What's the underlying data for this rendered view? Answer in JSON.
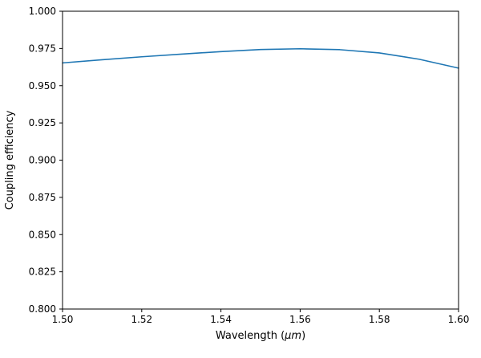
{
  "chart_data": {
    "type": "line",
    "title": "",
    "xlabel": "Wavelength (μm)",
    "ylabel": "Coupling efficiency",
    "xlim": [
      1.5,
      1.6
    ],
    "ylim": [
      0.8,
      1.0
    ],
    "grid": false,
    "legend": null,
    "xticks": [
      1.5,
      1.52,
      1.54,
      1.56,
      1.58,
      1.6
    ],
    "xtick_labels": [
      "1.50",
      "1.52",
      "1.54",
      "1.56",
      "1.58",
      "1.60"
    ],
    "yticks": [
      0.8,
      0.825,
      0.85,
      0.875,
      0.9,
      0.925,
      0.95,
      0.975,
      1.0
    ],
    "ytick_labels": [
      "0.800",
      "0.825",
      "0.850",
      "0.875",
      "0.900",
      "0.925",
      "0.950",
      "0.975",
      "1.000"
    ],
    "series": [
      {
        "name": "coupling-efficiency",
        "color": "#1f77b4",
        "x": [
          1.5,
          1.51,
          1.52,
          1.53,
          1.54,
          1.55,
          1.56,
          1.57,
          1.58,
          1.59,
          1.6
        ],
        "y": [
          0.9653,
          0.9674,
          0.9694,
          0.9712,
          0.9729,
          0.9743,
          0.9748,
          0.9742,
          0.972,
          0.9678,
          0.9618
        ]
      }
    ]
  },
  "axes": {
    "xlabel_prefix": "Wavelength (",
    "xlabel_math": "μm",
    "xlabel_suffix": ")",
    "ylabel": "Coupling efficiency"
  },
  "style": {
    "spine_color": "#000000",
    "background": "#ffffff"
  }
}
